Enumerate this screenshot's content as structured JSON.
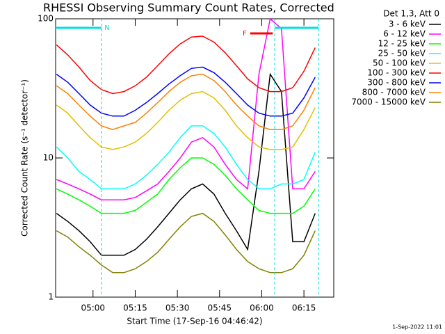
{
  "chart_data": {
    "type": "line",
    "title": "RHESSI Observing Summary Count Rates, Corrected",
    "x_label": "Start Time (17-Sep-16 04:46:42)",
    "y_label": "Corrected Count Rate (s⁻¹ detector⁻¹)",
    "legend_title": "Det 1,3, Att 0",
    "footer": "1-Sep-2022 11:01",
    "log_y": true,
    "xlim": [
      286.7,
      385.6
    ],
    "ylim": [
      1,
      100
    ],
    "yticks": [
      1,
      10,
      100
    ],
    "xticks": [
      {
        "value": 300,
        "label": "05:00"
      },
      {
        "value": 315,
        "label": "05:15"
      },
      {
        "value": 330,
        "label": "05:30"
      },
      {
        "value": 345,
        "label": "05:45"
      },
      {
        "value": 360,
        "label": "06:00"
      },
      {
        "value": 375,
        "label": "06:15"
      }
    ],
    "annotations": [
      {
        "label": "N",
        "color": "#00e0e0",
        "start": 286.7,
        "end": 303.0
      },
      {
        "color": "#00e0e0",
        "start": 364.6,
        "end": 380.2
      },
      {
        "label": "F",
        "color": "#ff0000",
        "start": 355.9,
        "end": 363.9
      }
    ],
    "x": [
      287,
      291,
      295,
      299,
      303,
      307,
      311,
      315,
      319,
      323,
      327,
      331,
      335,
      339,
      343,
      347,
      351,
      355,
      359,
      363,
      367,
      371,
      375,
      379
    ],
    "series": [
      {
        "name": "3 - 6 keV",
        "color": "#000000",
        "values": [
          4,
          3.5,
          3,
          2.5,
          2,
          2,
          2,
          2.2,
          2.6,
          3.2,
          4,
          5,
          6,
          6.5,
          5.5,
          4,
          3,
          2.2,
          8,
          40,
          30,
          2.5,
          2.5,
          4
        ]
      },
      {
        "name": "6 - 12 keV",
        "color": "#ff00ff",
        "values": [
          7,
          6.5,
          6,
          5.5,
          5,
          5,
          5,
          5.2,
          5.8,
          6.5,
          8,
          10,
          13,
          14,
          12,
          9,
          7,
          6,
          40,
          100,
          85,
          6,
          6,
          8
        ]
      },
      {
        "name": "12 - 25 keV",
        "color": "#00ff00",
        "values": [
          6,
          5.5,
          5,
          4.5,
          4,
          4,
          4,
          4.2,
          4.8,
          5.5,
          7,
          8.5,
          10,
          10,
          9,
          7.5,
          6,
          5,
          4.2,
          4,
          4,
          4,
          4.5,
          6
        ]
      },
      {
        "name": "25 - 50 keV",
        "color": "#00ffff",
        "values": [
          12,
          10,
          8,
          7,
          6,
          6,
          6,
          6.5,
          7.5,
          9,
          11,
          14,
          17,
          17,
          15,
          12,
          9,
          7,
          6,
          6,
          6.5,
          6.5,
          7,
          11
        ]
      },
      {
        "name": "50 - 100 keV",
        "color": "#e0c000",
        "values": [
          24,
          21,
          17,
          14,
          12,
          11.5,
          12,
          13,
          15,
          18,
          22,
          26,
          29,
          30,
          27,
          22,
          17,
          14,
          12,
          11.5,
          11.5,
          12,
          16,
          23
        ]
      },
      {
        "name": "100 - 300 keV",
        "color": "#ff0000",
        "values": [
          65,
          55,
          45,
          36,
          31,
          29,
          30,
          33,
          38,
          46,
          56,
          66,
          74,
          75,
          68,
          57,
          46,
          37,
          32,
          30,
          30,
          32,
          42,
          62
        ]
      },
      {
        "name": "300 - 800 keV",
        "color": "#0000ff",
        "values": [
          40,
          35,
          29,
          24,
          21,
          20,
          20,
          22,
          25,
          29,
          34,
          39,
          44,
          45,
          41,
          35,
          29,
          24,
          21,
          20,
          20,
          21,
          27,
          38
        ]
      },
      {
        "name": "800 - 7000 keV",
        "color": "#ff8000",
        "values": [
          33,
          29,
          24,
          20,
          17,
          16,
          17,
          18,
          21,
          25,
          30,
          35,
          39,
          40,
          36,
          30,
          24,
          20,
          17,
          16,
          16,
          17,
          22,
          32
        ]
      },
      {
        "name": "7000 - 15000 keV",
        "color": "#808000",
        "values": [
          3,
          2.7,
          2.3,
          2,
          1.7,
          1.5,
          1.5,
          1.6,
          1.8,
          2.1,
          2.6,
          3.2,
          3.8,
          4,
          3.5,
          2.8,
          2.2,
          1.8,
          1.6,
          1.5,
          1.5,
          1.6,
          2,
          3
        ]
      }
    ]
  }
}
